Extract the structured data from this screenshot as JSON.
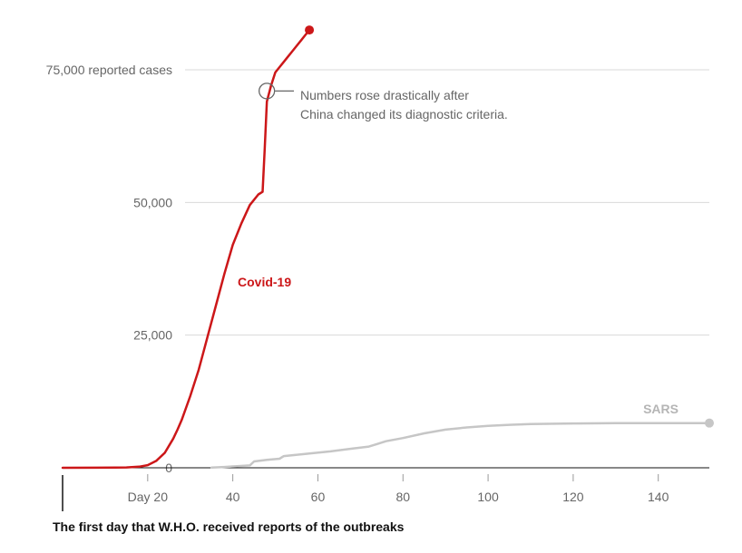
{
  "chart_data": {
    "type": "line",
    "xlabel": "",
    "ylabel": "",
    "xlim": [
      0,
      152
    ],
    "ylim": [
      0,
      82000
    ],
    "grid": true,
    "x_ticks": [
      20,
      40,
      60,
      80,
      100,
      120,
      140
    ],
    "x_tick_labels": [
      "Day 20",
      "40",
      "60",
      "80",
      "100",
      "120",
      "140"
    ],
    "y_ticks": [
      0,
      25000,
      50000,
      75000
    ],
    "y_tick_labels": [
      "0",
      "25,000",
      "50,000",
      "75,000 reported cases"
    ],
    "series": [
      {
        "name": "Covid-19",
        "color": "#cc1719",
        "x": [
          0,
          8,
          15,
          18,
          20,
          22,
          24,
          26,
          27,
          28,
          30,
          32,
          34,
          36,
          38,
          40,
          42,
          44,
          46,
          47,
          47.5,
          48,
          49,
          50,
          51,
          52,
          53,
          54,
          55,
          56,
          57,
          58
        ],
        "y": [
          0,
          20,
          60,
          200,
          500,
          1300,
          2800,
          5500,
          7200,
          9000,
          13500,
          18500,
          24500,
          30500,
          36500,
          42000,
          46000,
          49500,
          51500,
          52000,
          60000,
          69000,
          72000,
          74500,
          75500,
          76500,
          77500,
          78500,
          79500,
          80500,
          81500,
          82500
        ]
      },
      {
        "name": "SARS",
        "color": "#c6c6c6",
        "x": [
          35,
          38,
          41,
          44,
          45,
          48,
          51,
          52,
          58,
          63,
          68,
          72,
          74,
          76,
          80,
          85,
          90,
          95,
          100,
          105,
          110,
          120,
          130,
          140,
          152
        ],
        "y": [
          50,
          150,
          300,
          450,
          1200,
          1500,
          1700,
          2200,
          2700,
          3100,
          3600,
          4000,
          4500,
          5000,
          5600,
          6500,
          7200,
          7600,
          7900,
          8100,
          8250,
          8350,
          8400,
          8420,
          8430
        ]
      }
    ],
    "annotations": [
      {
        "text_lines": [
          "Numbers rose drastically after",
          "China changed its diagnostic criteria."
        ],
        "x": 48,
        "y": 71000
      }
    ],
    "footnote": "The first day that W.H.O. received reports of the outbreaks"
  }
}
